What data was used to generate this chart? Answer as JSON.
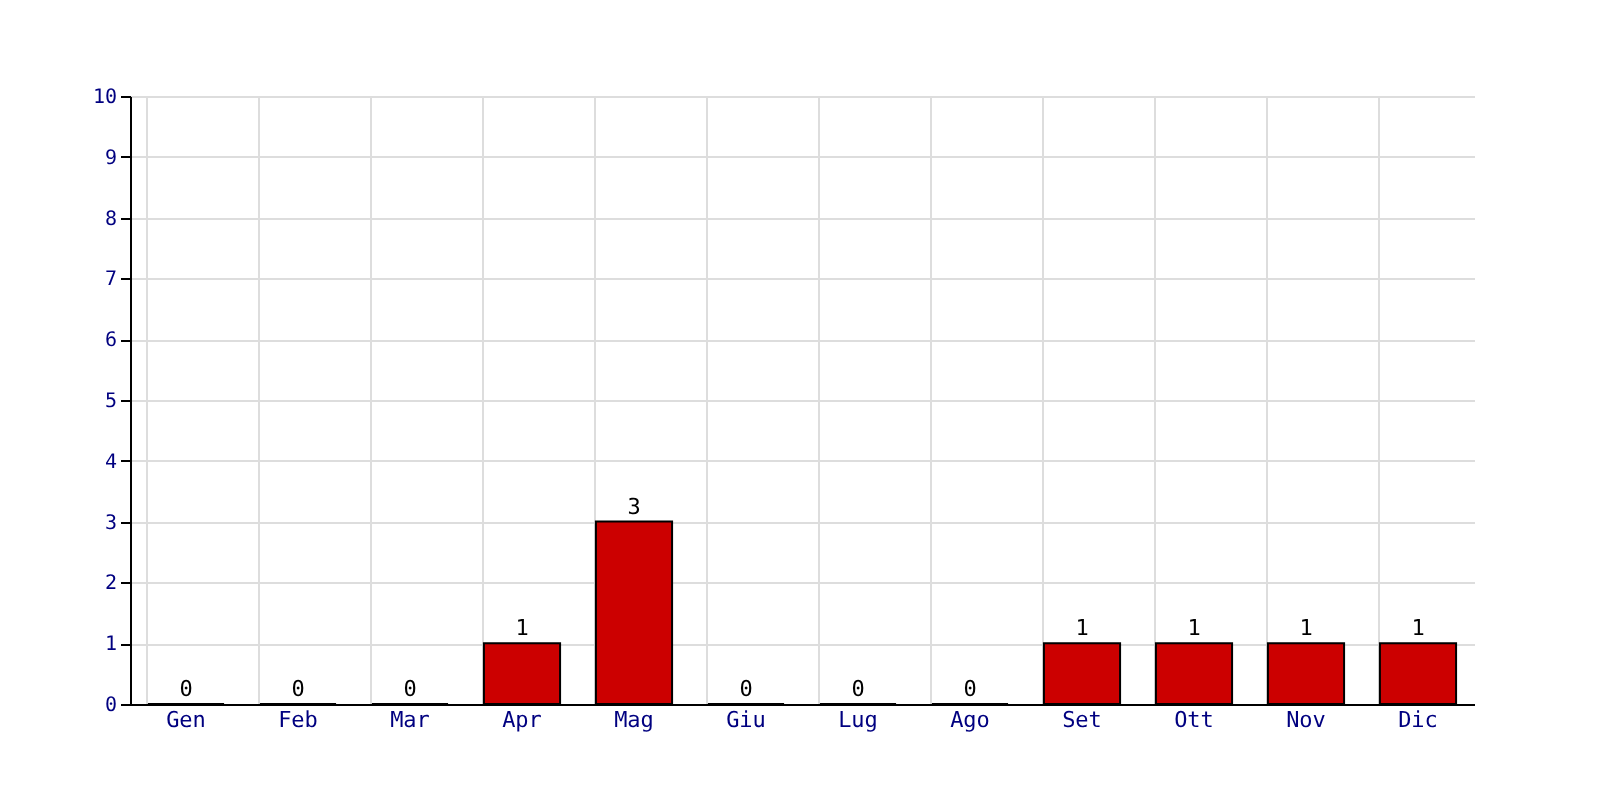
{
  "chart_data": {
    "type": "bar",
    "categories": [
      "Gen",
      "Feb",
      "Mar",
      "Apr",
      "Mag",
      "Giu",
      "Lug",
      "Ago",
      "Set",
      "Ott",
      "Nov",
      "Dic"
    ],
    "values": [
      0,
      0,
      0,
      1,
      3,
      0,
      0,
      0,
      1,
      1,
      1,
      1
    ],
    "color": "#cc0000",
    "ylim": [
      0,
      10
    ],
    "yticks": [
      0,
      1,
      2,
      3,
      4,
      5,
      6,
      7,
      8,
      9,
      10
    ],
    "grid": true,
    "data_labels": true
  }
}
